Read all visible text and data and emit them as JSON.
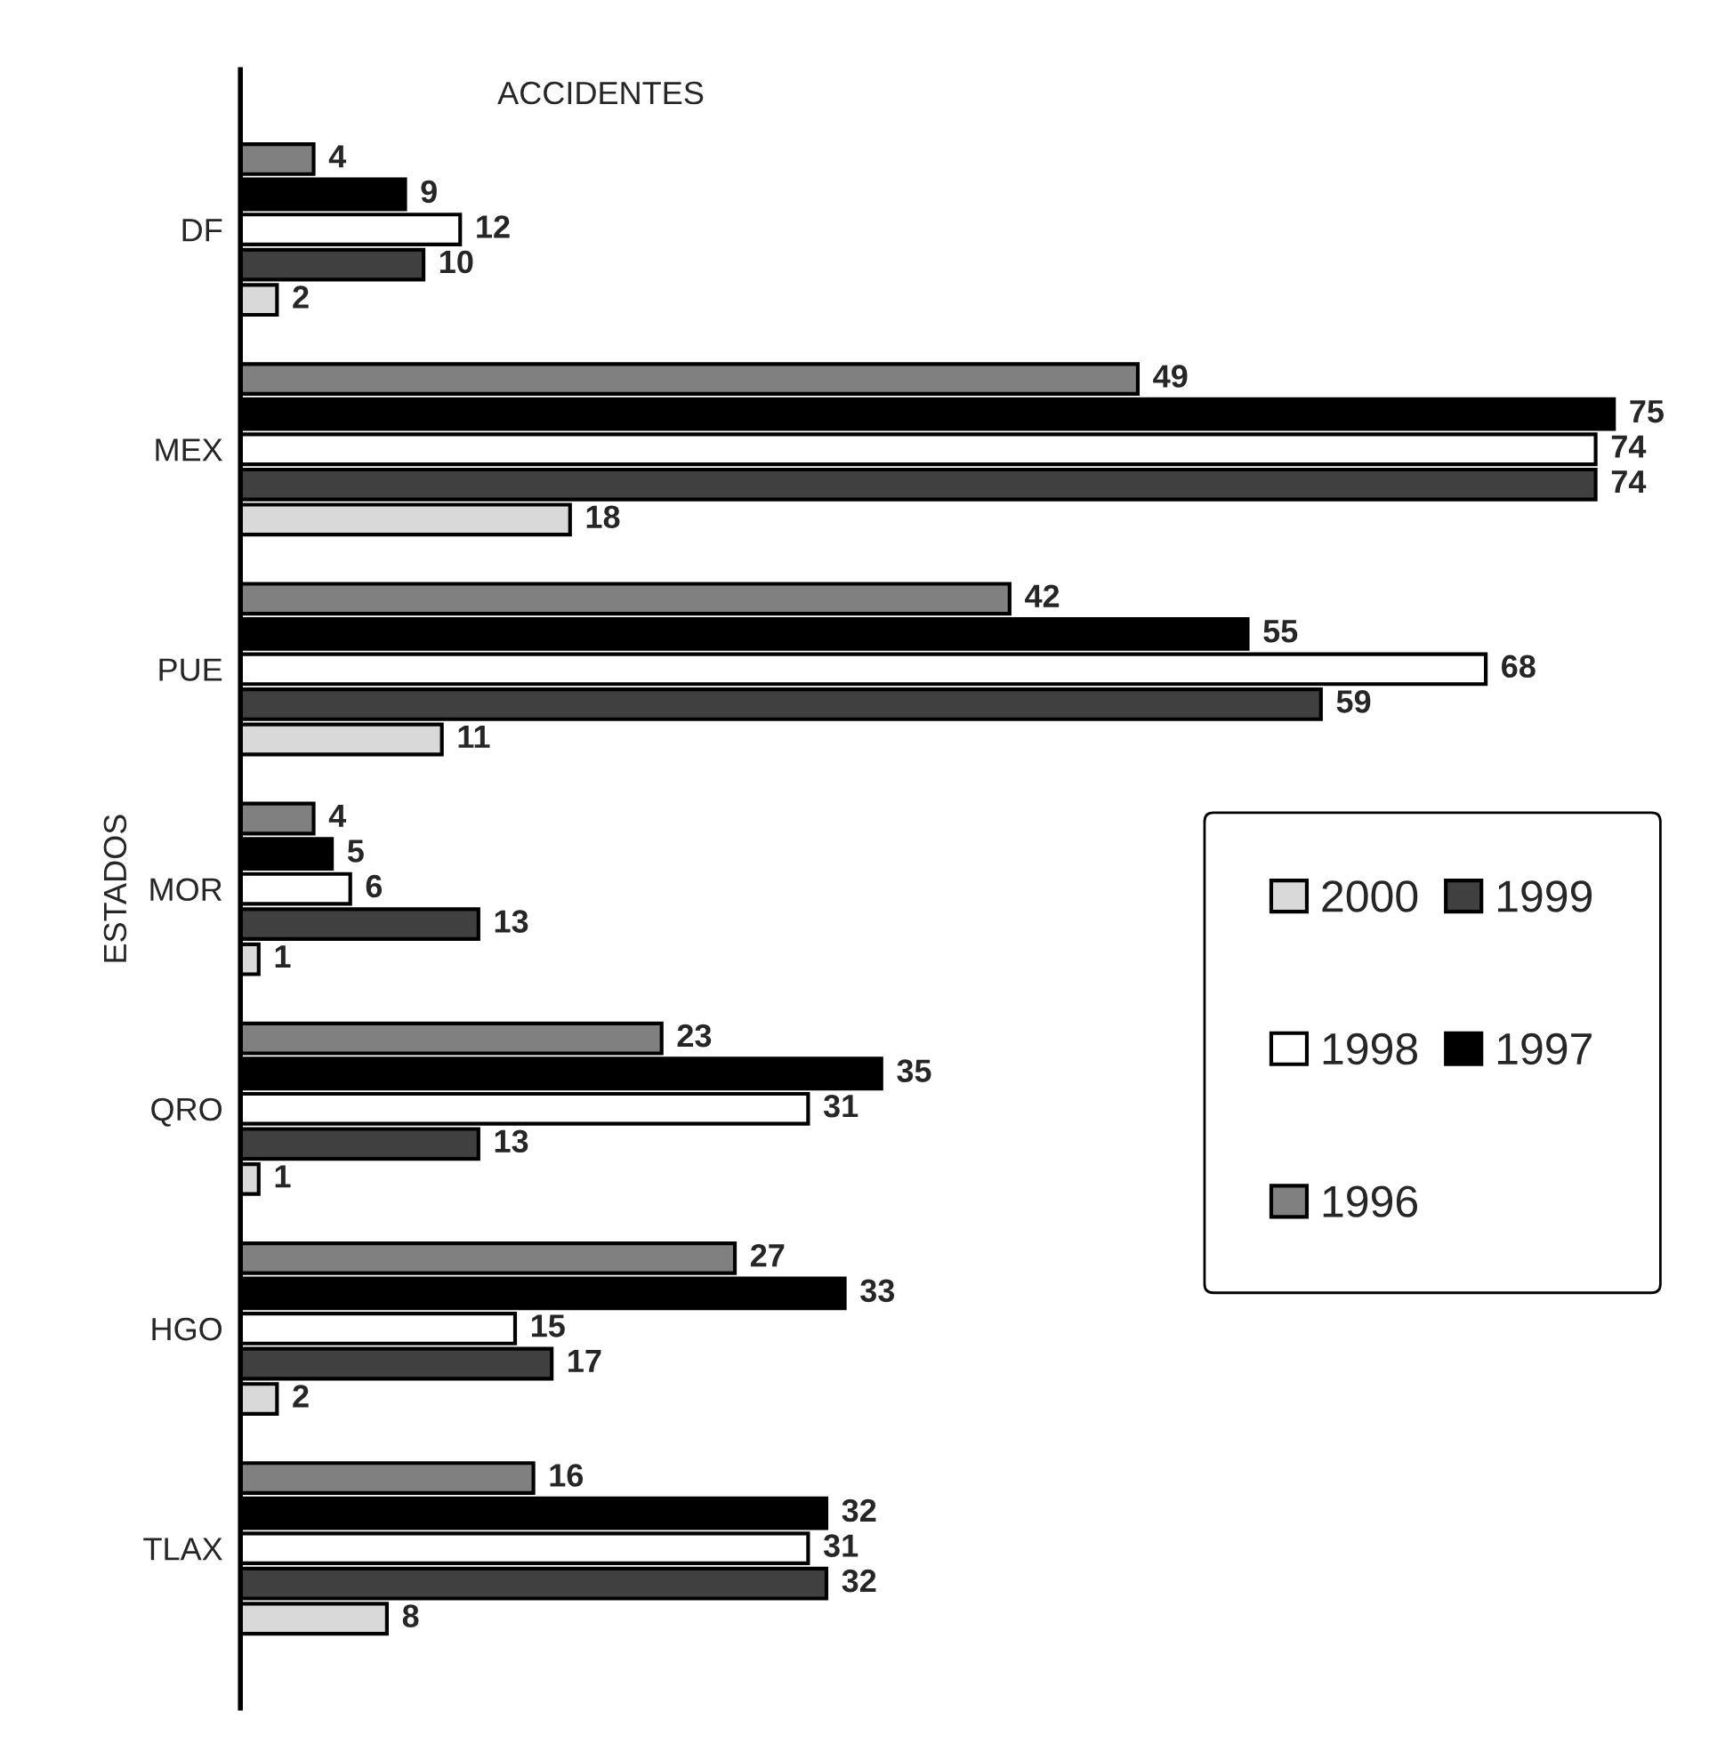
{
  "chart_data": {
    "type": "bar",
    "orientation": "horizontal",
    "title": "ACCIDENTES",
    "ylabel": "ESTADOS",
    "categories": [
      "DF",
      "MEX",
      "PUE",
      "MOR",
      "QRO",
      "HGO",
      "TLAX"
    ],
    "series": [
      {
        "name": "2000",
        "color": "#d9d9d9",
        "values": [
          2,
          18,
          11,
          1,
          1,
          2,
          8
        ]
      },
      {
        "name": "1999",
        "color": "#404040",
        "values": [
          10,
          74,
          59,
          13,
          13,
          17,
          32
        ]
      },
      {
        "name": "1998",
        "color": "#ffffff",
        "values": [
          12,
          74,
          68,
          6,
          31,
          15,
          31
        ]
      },
      {
        "name": "1997",
        "color": "#000000",
        "values": [
          9,
          75,
          55,
          5,
          35,
          33,
          32
        ]
      },
      {
        "name": "1996",
        "color": "#808080",
        "values": [
          4,
          49,
          42,
          4,
          23,
          27,
          16
        ]
      }
    ],
    "data_labels": true,
    "tick_labels": "y",
    "grid": false,
    "legend": "right"
  }
}
